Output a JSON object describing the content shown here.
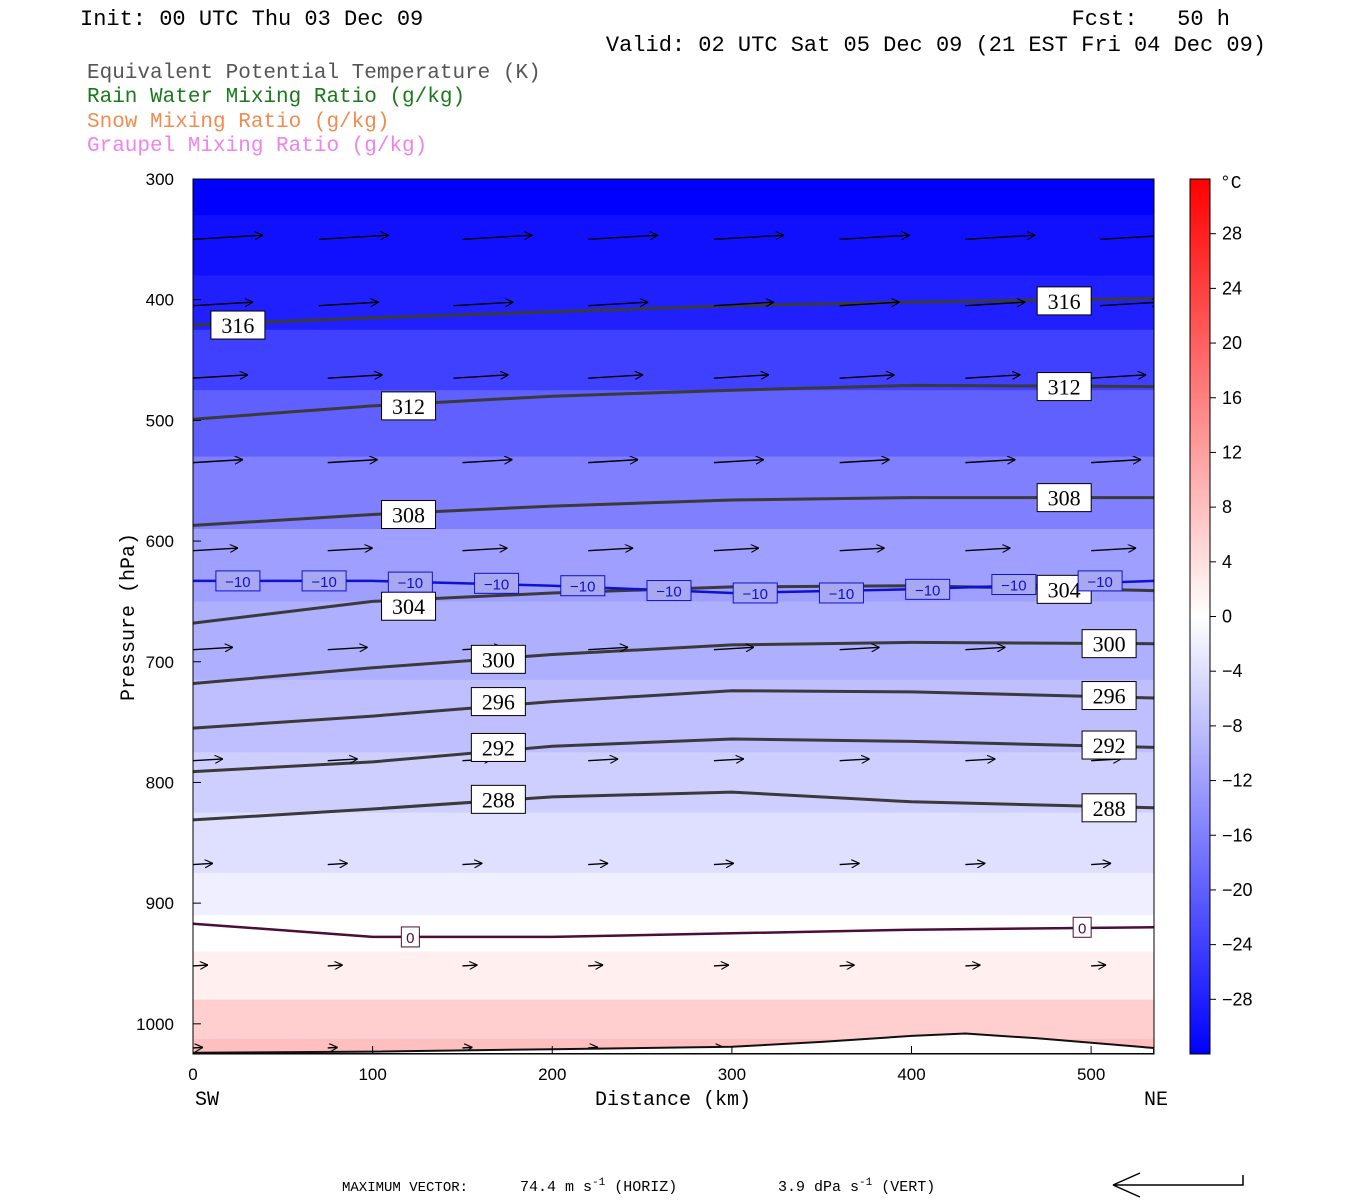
{
  "header": {
    "init": "Init: 00 UTC Thu 03 Dec 09",
    "fcst": "Fcst:   50 h",
    "valid": "Valid: 02 UTC Sat 05 Dec 09 (21 EST Fri 04 Dec 09)"
  },
  "legend": [
    {
      "label": "Equivalent Potential Temperature (K)",
      "color": "#555555"
    },
    {
      "label": "Rain Water Mixing Ratio (g/kg)",
      "color": "#1a7a1a"
    },
    {
      "label": "Snow Mixing Ratio (g/kg)",
      "color": "#f08c50"
    },
    {
      "label": "Graupel Mixing Ratio (g/kg)",
      "color": "#ee82ee"
    }
  ],
  "axes": {
    "ylabel": "Pressure (hPa)",
    "xlabel": "Distance (km)",
    "left_end": "SW",
    "right_end": "NE",
    "colorbar_unit": "°C"
  },
  "footer": {
    "max_vector_label": "MAXIMUM VECTOR:",
    "horiz_value": "74.4",
    "horiz_unit": "m s",
    "horiz_exp": "-1",
    "horiz_tag": "(HORIZ)",
    "vert_value": "3.9",
    "vert_unit": "dPa s",
    "vert_exp": "-1",
    "vert_tag": "(VERT)"
  },
  "chart_data": {
    "type": "contour-cross-section",
    "x_range": [
      0,
      535
    ],
    "y_range": [
      300,
      1025
    ],
    "y_scale": "pressure (reversed)",
    "x_ticks": [
      0,
      100,
      200,
      300,
      400,
      500
    ],
    "y_ticks": [
      300,
      400,
      500,
      600,
      700,
      800,
      900,
      1000
    ],
    "colorbar_ticks": [
      28,
      24,
      20,
      16,
      12,
      8,
      4,
      0,
      -4,
      -8,
      -12,
      -16,
      -20,
      -24,
      -28
    ],
    "colorbar_tick_labels": [
      "28",
      "24",
      "20",
      "16",
      "12",
      "8",
      "4",
      "0",
      "−4",
      "−8",
      "−12",
      "−16",
      "−20",
      "−24",
      "−28"
    ],
    "colorbar_range": [
      -32,
      32
    ],
    "temperature_fill_levels": [
      {
        "p": 300,
        "t": -32
      },
      {
        "p": 360,
        "t": -30
      },
      {
        "p": 400,
        "t": -28
      },
      {
        "p": 450,
        "t": -24
      },
      {
        "p": 500,
        "t": -20
      },
      {
        "p": 560,
        "t": -16
      },
      {
        "p": 620,
        "t": -12
      },
      {
        "p": 680,
        "t": -10
      },
      {
        "p": 750,
        "t": -8
      },
      {
        "p": 800,
        "t": -6
      },
      {
        "p": 850,
        "t": -4
      },
      {
        "p": 900,
        "t": -2
      },
      {
        "p": 920,
        "t": 0
      },
      {
        "p": 960,
        "t": 2
      },
      {
        "p": 1000,
        "t": 6
      },
      {
        "p": 1025,
        "t": 8
      }
    ],
    "theta_e_contours": [
      {
        "value": 316,
        "label": "316",
        "points": [
          [
            0,
            421
          ],
          [
            100,
            415
          ],
          [
            200,
            410
          ],
          [
            300,
            405
          ],
          [
            400,
            402
          ],
          [
            535,
            399
          ]
        ],
        "labels_at": [
          [
            25,
            421
          ],
          [
            485,
            401
          ]
        ]
      },
      {
        "value": 312,
        "label": "312",
        "points": [
          [
            0,
            499
          ],
          [
            100,
            488
          ],
          [
            200,
            480
          ],
          [
            300,
            475
          ],
          [
            400,
            471
          ],
          [
            535,
            472
          ]
        ],
        "labels_at": [
          [
            120,
            488
          ],
          [
            485,
            472
          ]
        ]
      },
      {
        "value": 308,
        "label": "308",
        "points": [
          [
            0,
            587
          ],
          [
            100,
            578
          ],
          [
            200,
            571
          ],
          [
            300,
            566
          ],
          [
            400,
            564
          ],
          [
            535,
            564
          ]
        ],
        "labels_at": [
          [
            120,
            578
          ],
          [
            485,
            564
          ]
        ]
      },
      {
        "value": 304,
        "label": "304",
        "points": [
          [
            0,
            668
          ],
          [
            100,
            650
          ],
          [
            200,
            643
          ],
          [
            300,
            638
          ],
          [
            400,
            637
          ],
          [
            535,
            641
          ]
        ],
        "labels_at": [
          [
            120,
            654
          ],
          [
            485,
            640
          ]
        ]
      },
      {
        "value": 300,
        "label": "300",
        "points": [
          [
            0,
            718
          ],
          [
            100,
            705
          ],
          [
            200,
            694
          ],
          [
            300,
            686
          ],
          [
            400,
            684
          ],
          [
            535,
            685
          ]
        ],
        "labels_at": [
          [
            170,
            698
          ],
          [
            510,
            685
          ]
        ]
      },
      {
        "value": 296,
        "label": "296",
        "points": [
          [
            0,
            755
          ],
          [
            100,
            745
          ],
          [
            200,
            733
          ],
          [
            300,
            724
          ],
          [
            400,
            725
          ],
          [
            535,
            730
          ]
        ],
        "labels_at": [
          [
            170,
            733
          ],
          [
            510,
            728
          ]
        ]
      },
      {
        "value": 292,
        "label": "292",
        "points": [
          [
            0,
            791
          ],
          [
            100,
            783
          ],
          [
            200,
            770
          ],
          [
            300,
            764
          ],
          [
            400,
            766
          ],
          [
            535,
            771
          ]
        ],
        "labels_at": [
          [
            170,
            771
          ],
          [
            510,
            769
          ]
        ]
      },
      {
        "value": 288,
        "label": "288",
        "points": [
          [
            0,
            831
          ],
          [
            100,
            822
          ],
          [
            200,
            812
          ],
          [
            300,
            808
          ],
          [
            400,
            816
          ],
          [
            535,
            821
          ]
        ],
        "labels_at": [
          [
            170,
            814
          ],
          [
            510,
            821
          ]
        ]
      }
    ],
    "isotherms": [
      {
        "value": -10,
        "label": "−10",
        "points": [
          [
            0,
            633
          ],
          [
            100,
            633
          ],
          [
            200,
            637
          ],
          [
            300,
            643
          ],
          [
            400,
            640
          ],
          [
            535,
            633
          ]
        ],
        "labels_at": [
          [
            25,
            633
          ],
          [
            73,
            633
          ],
          [
            121,
            634
          ],
          [
            169,
            635
          ],
          [
            217,
            637
          ],
          [
            265,
            641
          ],
          [
            313,
            643
          ],
          [
            361,
            643
          ],
          [
            409,
            640
          ],
          [
            457,
            636
          ],
          [
            505,
            633
          ]
        ]
      },
      {
        "value": 0,
        "label": "0",
        "points": [
          [
            0,
            917
          ],
          [
            100,
            928
          ],
          [
            200,
            928
          ],
          [
            300,
            925
          ],
          [
            400,
            922
          ],
          [
            535,
            920
          ]
        ],
        "labels_at": [
          [
            121,
            928
          ],
          [
            495,
            920
          ]
        ]
      }
    ],
    "wind_vectors": [
      {
        "p": 350,
        "len": 7,
        "xs": [
          0,
          70,
          150,
          220,
          290,
          360,
          430,
          505
        ]
      },
      {
        "p": 405,
        "len": 6,
        "xs": [
          0,
          70,
          145,
          220,
          290,
          360,
          430,
          505
        ]
      },
      {
        "p": 465,
        "len": 5.5,
        "xs": [
          0,
          75,
          145,
          220,
          290,
          360,
          430,
          500
        ]
      },
      {
        "p": 535,
        "len": 5,
        "xs": [
          0,
          75,
          150,
          220,
          290,
          360,
          430,
          500
        ]
      },
      {
        "p": 608,
        "len": 4.5,
        "xs": [
          0,
          75,
          150,
          220,
          290,
          360,
          430,
          500
        ]
      },
      {
        "p": 690,
        "len": 4,
        "xs": [
          0,
          75,
          150,
          220,
          290,
          360,
          430,
          500
        ]
      },
      {
        "p": 782,
        "len": 3,
        "xs": [
          0,
          75,
          150,
          220,
          290,
          360,
          430,
          500
        ]
      },
      {
        "p": 868,
        "len": 2,
        "xs": [
          0,
          75,
          150,
          220,
          290,
          360,
          430,
          500
        ]
      },
      {
        "p": 952,
        "len": 1.5,
        "xs": [
          0,
          75,
          150,
          220,
          290,
          360,
          430,
          500
        ]
      },
      {
        "p": 1020,
        "len": 1,
        "xs": [
          0,
          75,
          150,
          220,
          290,
          360,
          430,
          500
        ]
      }
    ],
    "terrain": [
      [
        0,
        1024
      ],
      [
        100,
        1023
      ],
      [
        200,
        1021
      ],
      [
        300,
        1019
      ],
      [
        350,
        1015
      ],
      [
        400,
        1010
      ],
      [
        430,
        1008
      ],
      [
        470,
        1012
      ],
      [
        535,
        1020
      ]
    ]
  }
}
